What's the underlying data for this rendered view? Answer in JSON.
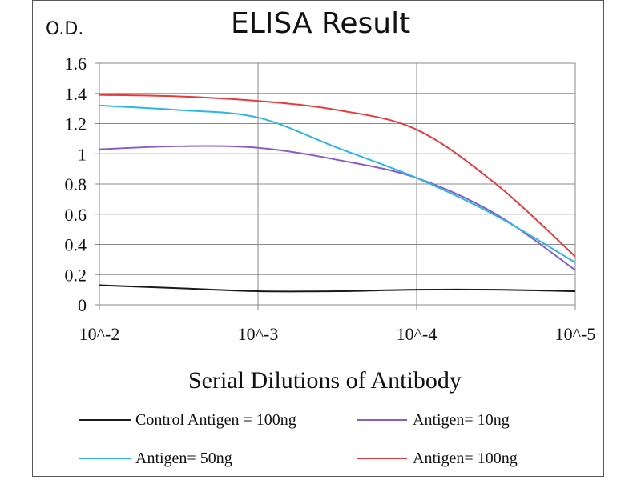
{
  "chart_data": {
    "type": "line",
    "title": "ELISA Result",
    "ylabel": "O.D.",
    "xlabel": "Serial Dilutions  of Antibody",
    "x_ticks": [
      "10^-2",
      "10^-3",
      "10^-4",
      "10^-5"
    ],
    "y_ticks": [
      "0",
      "0.2",
      "0.4",
      "0.6",
      "0.8",
      "1",
      "1.2",
      "1.4",
      "1.6"
    ],
    "ylim": [
      0,
      1.6
    ],
    "grid": true,
    "legend_position": "bottom",
    "series": [
      {
        "name": "Control Antigen = 100ng",
        "color": "#1a1a1a",
        "x": [
          "10^-2",
          "10^-2.5",
          "10^-3",
          "10^-3.5",
          "10^-4",
          "10^-4.5",
          "10^-5"
        ],
        "values": [
          0.13,
          0.11,
          0.09,
          0.09,
          0.1,
          0.1,
          0.09
        ]
      },
      {
        "name": "Antigen= 10ng",
        "color": "#8a5cc8",
        "x": [
          "10^-2",
          "10^-2.5",
          "10^-3",
          "10^-3.5",
          "10^-4",
          "10^-4.5",
          "10^-5"
        ],
        "values": [
          1.03,
          1.05,
          1.04,
          0.96,
          0.84,
          0.6,
          0.23
        ]
      },
      {
        "name": "Antigen= 50ng",
        "color": "#2bb7e6",
        "x": [
          "10^-2",
          "10^-2.5",
          "10^-3",
          "10^-3.5",
          "10^-4",
          "10^-4.5",
          "10^-5"
        ],
        "values": [
          1.32,
          1.29,
          1.24,
          1.04,
          0.84,
          0.59,
          0.28
        ]
      },
      {
        "name": "Antigen= 100ng",
        "color": "#e83a3a",
        "x": [
          "10^-2",
          "10^-2.5",
          "10^-3",
          "10^-3.5",
          "10^-4",
          "10^-4.5",
          "10^-5"
        ],
        "values": [
          1.39,
          1.38,
          1.35,
          1.29,
          1.16,
          0.8,
          0.32
        ]
      }
    ]
  }
}
